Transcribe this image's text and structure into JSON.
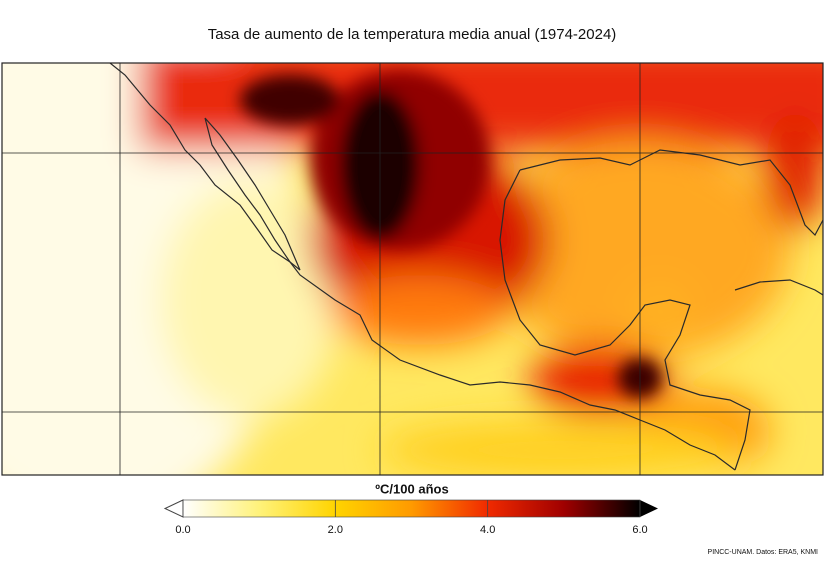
{
  "title": "Tasa de aumento de la temperatura media anual (1974-2024)",
  "colorbar": {
    "label": "ºC/100 años",
    "range": [
      0,
      6
    ],
    "ticks": [
      {
        "value": 0,
        "label": "0.0"
      },
      {
        "value": 2,
        "label": "2.0"
      },
      {
        "value": 4,
        "label": "4.0"
      },
      {
        "value": 6,
        "label": "6.0"
      }
    ],
    "colors": [
      "#ffffff",
      "#fff27a",
      "#ffd400",
      "#ff9a00",
      "#f02a00",
      "#a00000",
      "#000000"
    ]
  },
  "credit": "PINCC-UNAM. Datos: ERA5, KNMI"
}
